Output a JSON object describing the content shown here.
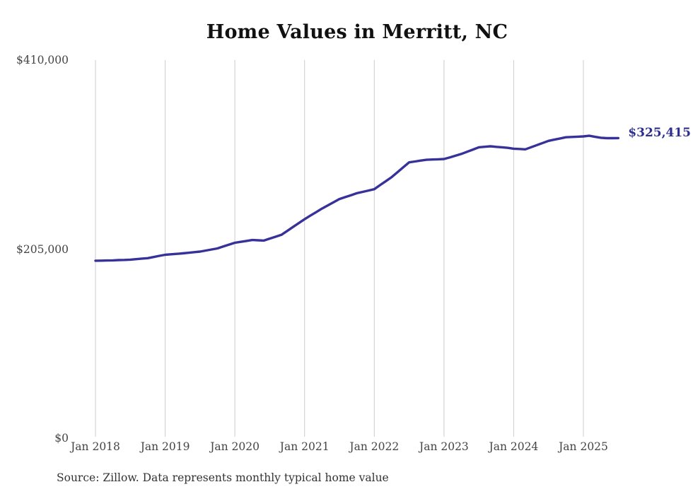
{
  "source_note": "Source: Zillow. Data represents monthly typical home value",
  "colors": {
    "line": "#37329a",
    "end_label": "#2d2f8f",
    "gridline": "#cccccc",
    "title": "#111111",
    "tick_label": "#444444",
    "source": "#333333",
    "background": "#ffffff"
  },
  "chart_data": {
    "type": "line",
    "title": "Home Values in Merritt, NC",
    "series_name": "Typical home value (monthly)",
    "x_start": "2018-01",
    "x_end": "2025-07",
    "x_frequency": "monthly",
    "x_tick_labels": [
      "Jan 2018",
      "Jan 2019",
      "Jan 2020",
      "Jan 2021",
      "Jan 2022",
      "Jan 2023",
      "Jan 2024",
      "Jan 2025"
    ],
    "y_ticks": [
      0,
      205000,
      410000
    ],
    "y_tick_labels": [
      "$0",
      "$205,000",
      "$410,000"
    ],
    "ylim": [
      0,
      410000
    ],
    "grid": "vertical-only",
    "legend": "none",
    "last_value": 325415,
    "last_value_label": "$325,415",
    "values": [
      192400,
      192500,
      192700,
      192800,
      193100,
      193300,
      193600,
      194100,
      194700,
      195200,
      196400,
      197700,
      198900,
      199400,
      199900,
      200400,
      201000,
      201700,
      202300,
      203500,
      204600,
      205800,
      207800,
      209900,
      211900,
      212900,
      213900,
      214900,
      214600,
      214300,
      216400,
      218400,
      220500,
      224700,
      229000,
      233200,
      237400,
      241300,
      245100,
      249000,
      252400,
      255900,
      259300,
      261400,
      263500,
      265600,
      267100,
      268500,
      270000,
      274400,
      278700,
      283100,
      288400,
      293800,
      299100,
      300000,
      301000,
      301900,
      302200,
      302400,
      302700,
      304500,
      306400,
      308200,
      310600,
      313000,
      315400,
      316000,
      316500,
      315900,
      315400,
      314800,
      313900,
      313600,
      313200,
      315500,
      317800,
      320100,
      322400,
      323700,
      325000,
      326300,
      326600,
      326900,
      327200,
      327900,
      326800,
      325800,
      325300,
      325300,
      325415
    ]
  }
}
